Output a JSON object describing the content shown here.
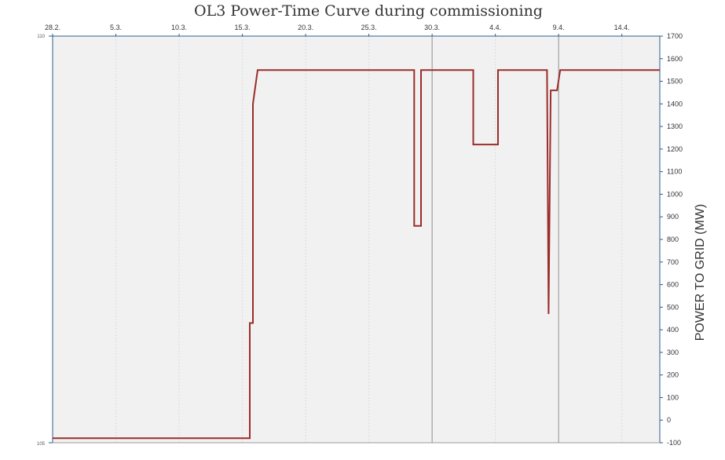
{
  "chart_data": {
    "type": "line",
    "title": "OL3 Power-Time Curve during commissioning",
    "xlabel": "",
    "ylabel": "POWER TO GRID (MW)",
    "x_tick_labels": [
      "28.2.",
      "5.3.",
      "10.3.",
      "15.3.",
      "20.3.",
      "25.3.",
      "30.3.",
      "4.4.",
      "9.4.",
      "14.4."
    ],
    "x_range": [
      "2023-02-28",
      "2023-04-17"
    ],
    "ylim": [
      -100,
      1700
    ],
    "y_ticks": [
      -100,
      0,
      100,
      200,
      300,
      400,
      500,
      600,
      700,
      800,
      900,
      1000,
      1100,
      1200,
      1300,
      1400,
      1500,
      1600,
      1700
    ],
    "secondary_left_axis": {
      "top_label": "110",
      "bottom_label": "105"
    },
    "grid": "light vertical gridlines at ticks; darker gridlines at 30.3. and 9.4.",
    "background": "#f1f1f1",
    "series": [
      {
        "name": "",
        "color": "#9b2d2b",
        "points": [
          [
            "2023-02-28",
            -80
          ],
          [
            "2023-03-15 14:00",
            -80
          ],
          [
            "2023-03-15 14:00",
            430
          ],
          [
            "2023-03-15 20:00",
            430
          ],
          [
            "2023-03-15 20:00",
            1400
          ],
          [
            "2023-03-16 05:00",
            1550
          ],
          [
            "2023-03-28 14:00",
            1550
          ],
          [
            "2023-03-28 14:00",
            860
          ],
          [
            "2023-03-29 03:00",
            860
          ],
          [
            "2023-03-29 03:00",
            1550
          ],
          [
            "2023-04-02 06:00",
            1550
          ],
          [
            "2023-04-02 06:00",
            1220
          ],
          [
            "2023-04-04 05:00",
            1220
          ],
          [
            "2023-04-04 05:00",
            1550
          ],
          [
            "2023-04-08 02:00",
            1550
          ],
          [
            "2023-04-08 05:00",
            470
          ],
          [
            "2023-04-08 09:00",
            1460
          ],
          [
            "2023-04-08 21:00",
            1460
          ],
          [
            "2023-04-09 03:00",
            1550
          ],
          [
            "2023-04-17",
            1550
          ]
        ]
      }
    ]
  }
}
